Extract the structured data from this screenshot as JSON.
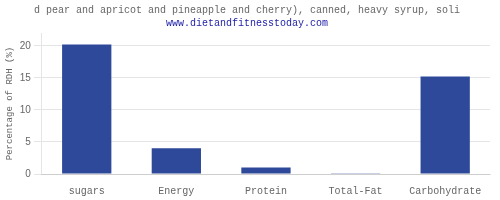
{
  "chart_data": {
    "type": "bar",
    "title": "d pear and apricot and pineapple and cherry), canned, heavy syrup, soli",
    "subtitle": "www.dietandfitnesstoday.com",
    "y_label": "Percentage of RDH (%)",
    "categories": [
      "sugars",
      "Energy",
      "Protein",
      "Total-Fat",
      "Carbohydrate"
    ],
    "values": [
      20.2,
      4.0,
      1.0,
      0.05,
      15.2
    ],
    "color": "#2e4999",
    "ylim": [
      0,
      22
    ],
    "yticks": [
      0,
      5,
      10,
      15,
      20
    ],
    "grid": true
  }
}
